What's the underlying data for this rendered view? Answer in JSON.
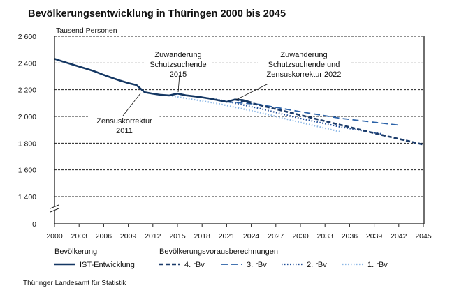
{
  "chart_data": {
    "type": "line",
    "title": "Bevölkerungsentwicklung in Thüringen 2000 bis 2045",
    "ylabel": "Tausend Personen",
    "xlabel": "",
    "xlim": [
      2000,
      2045
    ],
    "ylim": [
      0,
      2600
    ],
    "y_axis_break": [
      0,
      1400
    ],
    "x_ticks": [
      "2000",
      "2003",
      "2006",
      "2009",
      "2012",
      "2015",
      "2018",
      "2021",
      "2024",
      "2027",
      "2030",
      "2033",
      "2036",
      "2039",
      "2042",
      "2045"
    ],
    "y_ticks": [
      "0",
      "1 400",
      "1 600",
      "1 800",
      "2 000",
      "2 200",
      "2 400",
      "2 600"
    ],
    "y_tick_values": [
      0,
      1400,
      1600,
      1800,
      2000,
      2200,
      2400,
      2600
    ],
    "grid": "horizontal dashed",
    "legend_position": "bottom",
    "legend_groups": [
      {
        "title": "Bevölkerung",
        "items": [
          "IST-Entwicklung"
        ]
      },
      {
        "title": "Bevölkerungsvorausberechnungen",
        "items": [
          "4. rBv",
          "3. rBv",
          "2. rBv",
          "1. rBv"
        ]
      }
    ],
    "series": [
      {
        "name": "IST-Entwicklung",
        "color": "#143763",
        "style": "solid",
        "x": [
          2000,
          2001,
          2002,
          2003,
          2004,
          2005,
          2006,
          2007,
          2008,
          2009,
          2010,
          2011,
          2012,
          2013,
          2014,
          2015,
          2016,
          2017,
          2018,
          2019,
          2020,
          2021,
          2022,
          2023,
          2024
        ],
        "y": [
          2431,
          2411,
          2392,
          2373,
          2355,
          2335,
          2311,
          2289,
          2268,
          2250,
          2235,
          2181,
          2170,
          2161,
          2157,
          2171,
          2158,
          2151,
          2143,
          2133,
          2121,
          2109,
          2127,
          2122,
          2105
        ]
      },
      {
        "name": "4. rBv",
        "color": "#1b3b6a",
        "style": "dashed-bold",
        "x": [
          2022,
          2024,
          2030,
          2035,
          2040,
          2045
        ],
        "y": [
          2127,
          2100,
          2010,
          1935,
          1860,
          1790
        ]
      },
      {
        "name": "3. rBv",
        "color": "#2b62a8",
        "style": "dashed",
        "x": [
          2021,
          2025,
          2030,
          2035,
          2042
        ],
        "y": [
          2109,
          2090,
          2035,
          1985,
          1935
        ]
      },
      {
        "name": "2. rBv",
        "color": "#1e4d98",
        "style": "dotted",
        "x": [
          2018,
          2020,
          2025,
          2030,
          2035,
          2040
        ],
        "y": [
          2143,
          2125,
          2060,
          1985,
          1920,
          1868
        ]
      },
      {
        "name": "1. rBv",
        "color": "#8bb7e6",
        "style": "dotted-light",
        "x": [
          2014,
          2020,
          2025,
          2030,
          2035
        ],
        "y": [
          2157,
          2095,
          2030,
          1955,
          1883
        ]
      }
    ],
    "annotations": [
      {
        "lines": [
          "Zuwanderung",
          "Schutzsuchende",
          "2015"
        ],
        "x": 2015
      },
      {
        "lines": [
          "Zensuskorrektur",
          "2011"
        ],
        "x": 2011
      },
      {
        "lines": [
          "Zuwanderung",
          "Schutzsuchende und",
          "Zensuskorrektur 2022"
        ],
        "x": 2022
      }
    ]
  },
  "source": "Thüringer Landesamt für Statistik"
}
